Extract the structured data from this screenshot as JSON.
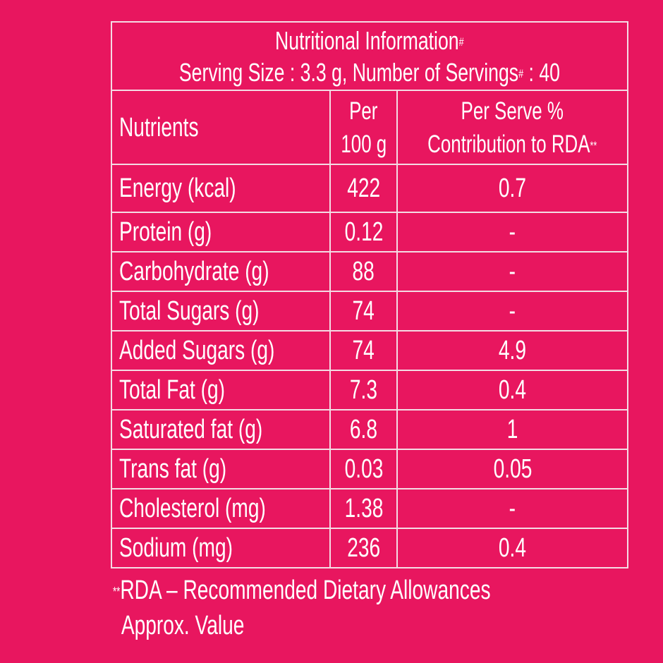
{
  "header": {
    "title": "Nutritional Information",
    "title_mark": "#",
    "serving_prefix": "Serving Size : 3.3 g, Number of Servings",
    "serving_mark": "#",
    "serving_suffix": " : 40"
  },
  "columns": {
    "nutrients": "Nutrients",
    "per100_line1": "Per",
    "per100_line2": "100 g",
    "rda_line1": "Per Serve %",
    "rda_line2": "Contribution to RDA",
    "rda_mark": "**"
  },
  "rows": [
    {
      "name": "Energy (kcal)",
      "per100": "422",
      "rda": "0.7"
    },
    {
      "name": "Protein (g)",
      "per100": "0.12",
      "rda": "-"
    },
    {
      "name": "Carbohydrate (g)",
      "per100": "88",
      "rda": "-"
    },
    {
      "name": "Total Sugars (g)",
      "per100": "74",
      "rda": "-"
    },
    {
      "name": "Added Sugars (g)",
      "per100": "74",
      "rda": "4.9"
    },
    {
      "name": "Total Fat (g)",
      "per100": "7.3",
      "rda": "0.4"
    },
    {
      "name": "Saturated fat (g)",
      "per100": "6.8",
      "rda": "1"
    },
    {
      "name": "Trans fat (g)",
      "per100": "0.03",
      "rda": "0.05"
    },
    {
      "name": "Cholesterol (mg)",
      "per100": "1.38",
      "rda": "-"
    },
    {
      "name": "Sodium (mg)",
      "per100": "236",
      "rda": "0.4"
    }
  ],
  "footnote": {
    "mark": "**",
    "line1": "RDA – Recommended Dietary Allowances",
    "line2": "Approx. Value"
  },
  "colors": {
    "background": "#E8165F",
    "text": "#FFFFFF"
  }
}
